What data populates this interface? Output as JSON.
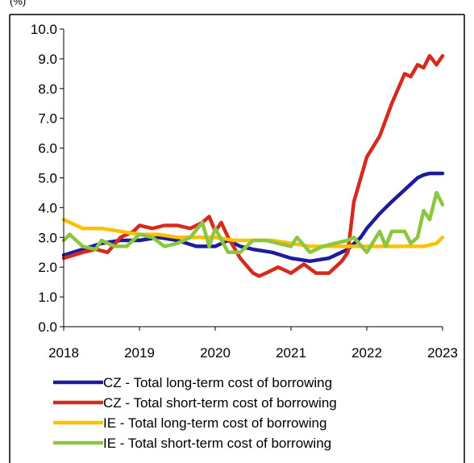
{
  "chart_data": {
    "type": "line",
    "title": "",
    "xlabel": "",
    "ylabel": "",
    "header_text": "(%)",
    "xlim": [
      2018,
      2023
    ],
    "ylim": [
      0,
      10
    ],
    "grid": false,
    "legend_position": "bottom",
    "x_ticks": [
      {
        "value": 2018,
        "label": "2018"
      },
      {
        "value": 2019,
        "label": "2019"
      },
      {
        "value": 2020,
        "label": "2020"
      },
      {
        "value": 2021,
        "label": "2021"
      },
      {
        "value": 2022,
        "label": "2022"
      },
      {
        "value": 2023,
        "label": "2023"
      }
    ],
    "y_ticks": [
      {
        "value": 0,
        "label": "0.0"
      },
      {
        "value": 1,
        "label": "1.0"
      },
      {
        "value": 2,
        "label": "2.0"
      },
      {
        "value": 3,
        "label": "3.0"
      },
      {
        "value": 4,
        "label": "4.0"
      },
      {
        "value": 5,
        "label": "5.0"
      },
      {
        "value": 6,
        "label": "6.0"
      },
      {
        "value": 7,
        "label": "7.0"
      },
      {
        "value": 8,
        "label": "8.0"
      },
      {
        "value": 9,
        "label": "9.0"
      },
      {
        "value": 10,
        "label": "10.0"
      }
    ],
    "series": [
      {
        "name": "CZ - Total long-term cost of borrowing",
        "color": "#1c1c9c",
        "x": [
          2018.0,
          2018.25,
          2018.5,
          2018.75,
          2019.0,
          2019.25,
          2019.5,
          2019.75,
          2020.0,
          2020.17,
          2020.33,
          2020.5,
          2020.75,
          2021.0,
          2021.25,
          2021.5,
          2021.75,
          2021.92,
          2022.0,
          2022.17,
          2022.33,
          2022.5,
          2022.67,
          2022.75,
          2022.83,
          2023.0
        ],
        "y": [
          2.4,
          2.6,
          2.8,
          2.9,
          2.9,
          3.0,
          2.9,
          2.7,
          2.7,
          2.9,
          2.7,
          2.6,
          2.5,
          2.3,
          2.2,
          2.3,
          2.6,
          3.0,
          3.3,
          3.8,
          4.2,
          4.6,
          5.0,
          5.1,
          5.15,
          5.15
        ]
      },
      {
        "name": "CZ - Total short-term cost of borrowing",
        "color": "#d42b1e",
        "x": [
          2018.0,
          2018.25,
          2018.42,
          2018.58,
          2018.75,
          2018.92,
          2019.0,
          2019.17,
          2019.33,
          2019.5,
          2019.67,
          2019.83,
          2019.92,
          2020.0,
          2020.08,
          2020.17,
          2020.33,
          2020.5,
          2020.58,
          2020.67,
          2020.83,
          2021.0,
          2021.17,
          2021.33,
          2021.5,
          2021.67,
          2021.75,
          2021.83,
          2022.0,
          2022.17,
          2022.33,
          2022.5,
          2022.58,
          2022.67,
          2022.75,
          2022.83,
          2022.92,
          2023.0
        ],
        "y": [
          2.3,
          2.5,
          2.6,
          2.5,
          3.0,
          3.2,
          3.4,
          3.3,
          3.4,
          3.4,
          3.3,
          3.5,
          3.7,
          3.2,
          3.5,
          3.0,
          2.3,
          1.8,
          1.7,
          1.8,
          2.0,
          1.8,
          2.1,
          1.8,
          1.8,
          2.2,
          2.5,
          4.2,
          5.7,
          6.4,
          7.5,
          8.5,
          8.4,
          8.8,
          8.7,
          9.1,
          8.8,
          9.1
        ]
      },
      {
        "name": "IE - Total long-term cost of borrowing",
        "color": "#ffc000",
        "x": [
          2018.0,
          2018.25,
          2018.5,
          2018.75,
          2019.0,
          2019.25,
          2019.5,
          2019.75,
          2020.0,
          2020.25,
          2020.5,
          2020.75,
          2021.0,
          2021.25,
          2021.5,
          2021.75,
          2022.0,
          2022.25,
          2022.5,
          2022.75,
          2022.92,
          2023.0
        ],
        "y": [
          3.6,
          3.3,
          3.3,
          3.2,
          3.1,
          3.1,
          3.0,
          3.0,
          3.0,
          2.9,
          2.9,
          2.9,
          2.8,
          2.7,
          2.7,
          2.7,
          2.7,
          2.7,
          2.7,
          2.7,
          2.8,
          3.0
        ]
      },
      {
        "name": "IE - Total short-term cost of borrowing",
        "color": "#8cc63f",
        "x": [
          2018.0,
          2018.08,
          2018.25,
          2018.42,
          2018.5,
          2018.67,
          2018.83,
          2019.0,
          2019.17,
          2019.33,
          2019.5,
          2019.67,
          2019.83,
          2019.92,
          2020.0,
          2020.17,
          2020.33,
          2020.5,
          2020.67,
          2020.83,
          2021.0,
          2021.08,
          2021.25,
          2021.42,
          2021.58,
          2021.75,
          2021.83,
          2022.0,
          2022.17,
          2022.25,
          2022.33,
          2022.5,
          2022.58,
          2022.67,
          2022.75,
          2022.83,
          2022.92,
          2023.0
        ],
        "y": [
          2.9,
          3.1,
          2.7,
          2.6,
          2.9,
          2.7,
          2.7,
          3.1,
          3.0,
          2.7,
          2.8,
          3.0,
          3.5,
          2.7,
          3.3,
          2.5,
          2.5,
          2.9,
          2.9,
          2.8,
          2.7,
          3.0,
          2.5,
          2.7,
          2.8,
          2.9,
          3.0,
          2.5,
          3.2,
          2.7,
          3.2,
          3.2,
          2.8,
          3.0,
          3.9,
          3.6,
          4.5,
          4.1
        ]
      }
    ]
  }
}
